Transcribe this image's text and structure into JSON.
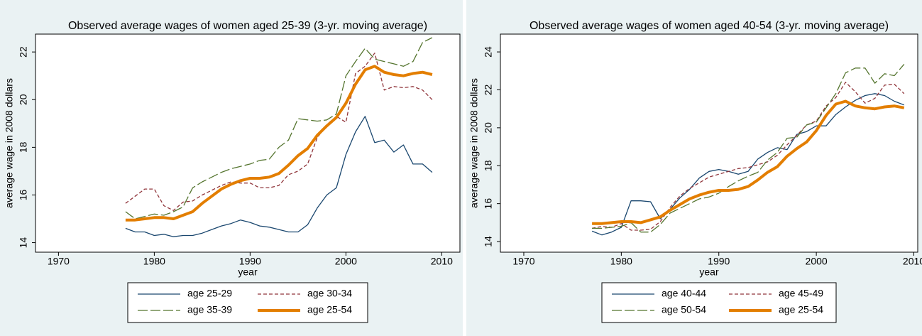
{
  "chart_data": [
    {
      "type": "line",
      "title": "Observed average wages of women aged 25-39 (3-yr. moving average)",
      "xlabel": "year",
      "ylabel": "average wage in 2008 dollars",
      "x": [
        1977,
        1978,
        1979,
        1980,
        1981,
        1982,
        1983,
        1984,
        1985,
        1986,
        1987,
        1988,
        1989,
        1990,
        1991,
        1992,
        1993,
        1994,
        1995,
        1996,
        1997,
        1998,
        1999,
        2000,
        2001,
        2002,
        2003,
        2004,
        2005,
        2006,
        2007,
        2008,
        2009
      ],
      "xlim": [
        1967.6,
        2011.9
      ],
      "xticks": [
        1970,
        1980,
        1990,
        2000,
        2010
      ],
      "ylim": [
        13.6,
        22.75
      ],
      "yticks": [
        14,
        16,
        18,
        20,
        22
      ],
      "series": [
        {
          "name": "age 25-29",
          "color": "#1a476f",
          "dash": "none",
          "width": 1.3,
          "values": [
            14.6,
            14.45,
            14.45,
            14.3,
            14.35,
            14.25,
            14.3,
            14.3,
            14.4,
            14.55,
            14.7,
            14.8,
            14.95,
            14.85,
            14.7,
            14.65,
            14.55,
            14.45,
            14.45,
            14.75,
            15.45,
            16.0,
            16.3,
            17.7,
            18.65,
            19.3,
            18.2,
            18.3,
            17.8,
            18.1,
            17.3,
            17.3,
            16.95
          ]
        },
        {
          "name": "age 30-34",
          "color": "#90353b",
          "dash": "5,3",
          "width": 1.3,
          "values": [
            15.65,
            15.95,
            16.25,
            16.25,
            15.55,
            15.35,
            15.7,
            15.75,
            16.0,
            16.2,
            16.4,
            16.55,
            16.5,
            16.5,
            16.3,
            16.3,
            16.4,
            16.85,
            17.0,
            17.3,
            18.4,
            18.95,
            19.3,
            19.05,
            21.1,
            21.4,
            21.95,
            20.4,
            20.55,
            20.5,
            20.55,
            20.4,
            20.0
          ]
        },
        {
          "name": "age 35-39",
          "color": "#55752f",
          "dash": "14,4",
          "width": 1.3,
          "values": [
            15.3,
            15.0,
            15.1,
            15.2,
            15.15,
            15.3,
            15.5,
            16.3,
            16.55,
            16.75,
            16.95,
            17.1,
            17.2,
            17.3,
            17.45,
            17.5,
            18.0,
            18.3,
            19.2,
            19.15,
            19.1,
            19.15,
            19.4,
            21.0,
            21.6,
            22.15,
            21.7,
            21.6,
            21.5,
            21.4,
            21.6,
            22.4,
            22.6
          ]
        },
        {
          "name": "age 25-54",
          "color": "#e37e00",
          "dash": "none",
          "width": 4,
          "values": [
            14.95,
            14.95,
            15.0,
            15.05,
            15.05,
            15.0,
            15.15,
            15.3,
            15.65,
            15.95,
            16.25,
            16.45,
            16.6,
            16.7,
            16.7,
            16.75,
            16.9,
            17.25,
            17.65,
            17.95,
            18.5,
            18.9,
            19.25,
            19.85,
            20.65,
            21.25,
            21.4,
            21.15,
            21.05,
            21.0,
            21.1,
            21.15,
            21.05
          ]
        }
      ]
    },
    {
      "type": "line",
      "title": "Observed average wages of women aged 40-54 (3-yr. moving average)",
      "xlabel": "year",
      "ylabel": "average wage in 2008 dollars",
      "x": [
        1977,
        1978,
        1979,
        1980,
        1981,
        1982,
        1983,
        1984,
        1985,
        1986,
        1987,
        1988,
        1989,
        1990,
        1991,
        1992,
        1993,
        1994,
        1995,
        1996,
        1997,
        1998,
        1999,
        2000,
        2001,
        2002,
        2003,
        2004,
        2005,
        2006,
        2007,
        2008,
        2009
      ],
      "xlim": [
        1967.6,
        2010.4
      ],
      "xticks": [
        1970,
        1980,
        1990,
        2000,
        2010
      ],
      "ylim": [
        13.44,
        24.94
      ],
      "yticks": [
        14,
        16,
        18,
        20,
        22,
        24
      ],
      "series": [
        {
          "name": "age 40-44",
          "color": "#1a476f",
          "dash": "none",
          "width": 1.3,
          "values": [
            14.55,
            14.35,
            14.5,
            14.75,
            16.15,
            16.15,
            16.1,
            15.2,
            15.7,
            16.3,
            16.75,
            17.35,
            17.7,
            17.8,
            17.7,
            17.55,
            17.7,
            18.35,
            18.7,
            18.95,
            18.85,
            19.65,
            19.8,
            20.1,
            20.1,
            20.7,
            21.1,
            21.45,
            21.7,
            21.8,
            21.7,
            21.4,
            21.2
          ]
        },
        {
          "name": "age 45-49",
          "color": "#90353b",
          "dash": "5,3",
          "width": 1.3,
          "values": [
            14.7,
            14.8,
            14.75,
            14.95,
            14.6,
            14.6,
            14.65,
            15.05,
            15.8,
            16.4,
            16.8,
            17.1,
            17.4,
            17.55,
            17.7,
            17.85,
            17.9,
            18.05,
            18.2,
            18.55,
            19.1,
            19.6,
            20.15,
            20.35,
            21.15,
            21.6,
            22.4,
            21.9,
            21.3,
            21.55,
            22.25,
            22.3,
            21.8
          ]
        },
        {
          "name": "age 50-54",
          "color": "#55752f",
          "dash": "14,4",
          "width": 1.3,
          "values": [
            14.7,
            14.7,
            14.75,
            14.8,
            15.0,
            14.5,
            14.5,
            14.9,
            15.5,
            15.75,
            16.0,
            16.25,
            16.35,
            16.55,
            16.9,
            17.2,
            17.45,
            17.65,
            18.3,
            18.7,
            19.45,
            19.5,
            20.15,
            20.3,
            21.05,
            21.8,
            22.9,
            23.15,
            23.15,
            22.35,
            22.85,
            22.75,
            23.35
          ]
        },
        {
          "name": "age 25-54",
          "color": "#e37e00",
          "dash": "none",
          "width": 4,
          "values": [
            14.95,
            14.95,
            15.0,
            15.05,
            15.05,
            15.0,
            15.15,
            15.3,
            15.65,
            15.95,
            16.25,
            16.45,
            16.6,
            16.7,
            16.7,
            16.75,
            16.9,
            17.25,
            17.65,
            17.95,
            18.5,
            18.9,
            19.25,
            19.85,
            20.65,
            21.25,
            21.4,
            21.15,
            21.05,
            21.0,
            21.1,
            21.15,
            21.05
          ]
        }
      ]
    }
  ]
}
